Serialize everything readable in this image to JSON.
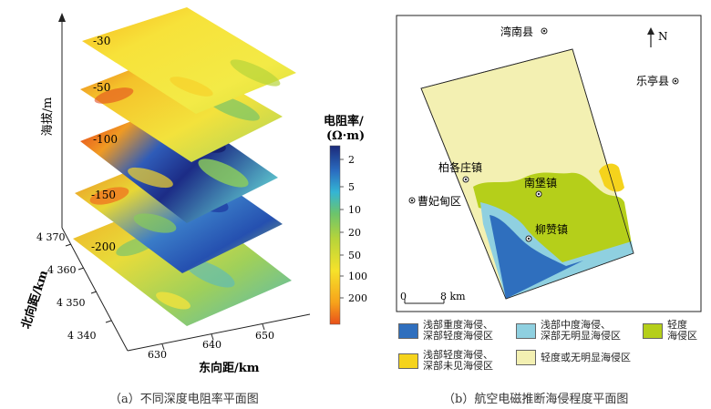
{
  "panel_a": {
    "z_axis_label": "海拔/m",
    "y_axis_label": "北向距/km",
    "x_axis_label": "东向距/km",
    "y_ticks": [
      "4 370",
      "4 360",
      "4 350",
      "4 340"
    ],
    "x_ticks": [
      "630",
      "640",
      "650"
    ],
    "depth_labels": [
      "-30",
      "-50",
      "-100",
      "-150",
      "-200"
    ],
    "colorbar": {
      "title_line1": "电阻率/",
      "title_line2": "(Ω·m)",
      "ticks": [
        "2",
        "5",
        "10",
        "20",
        "50",
        "100",
        "200"
      ]
    },
    "caption": "（a）不同深度电阻率平面图"
  },
  "panel_b": {
    "north_label": "N",
    "places": [
      "湾南县",
      "乐亭县",
      "柏各庄镇",
      "南堡镇",
      "曹妃甸区",
      "柳赞镇"
    ],
    "scale_left": "0",
    "scale_right": "8 km",
    "legend": [
      {
        "label_line1": "浅部重度海侵、",
        "label_line2": "深部轻度海侵区",
        "color": "#2f6fbe"
      },
      {
        "label_line1": "浅部中度海侵、",
        "label_line2": "深部无明显海侵区",
        "color": "#8fd0e0"
      },
      {
        "label_line1": "轻度",
        "label_line2": "海侵区",
        "color": "#b5cf1a"
      },
      {
        "label_line1": "浅部轻度海侵、",
        "label_line2": "深部未见海侵区",
        "color": "#f5d31c"
      },
      {
        "label_line1": "轻度或无明显海侵区",
        "label_line2": "",
        "color": "#f3f0b2"
      }
    ],
    "caption": "（b）航空电磁推断海侵程度平面图"
  }
}
